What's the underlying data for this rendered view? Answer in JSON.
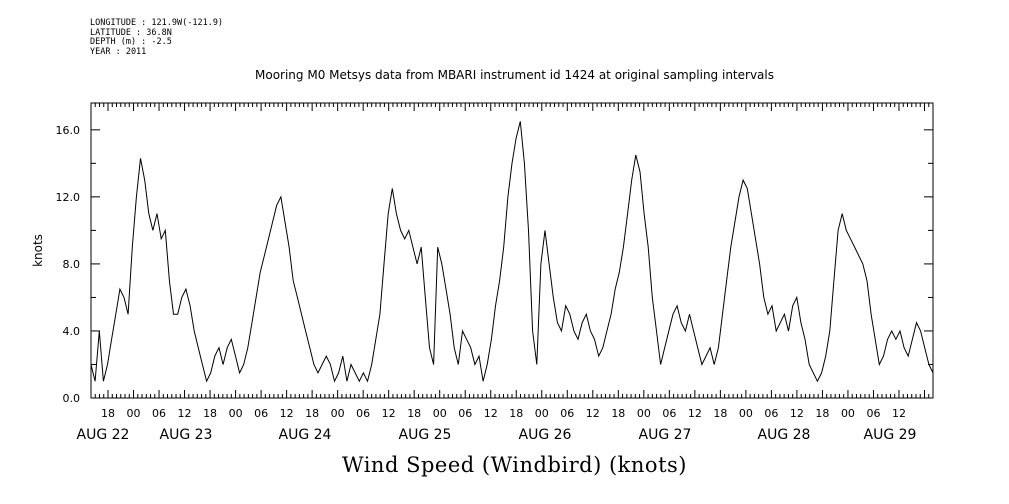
{
  "header": {
    "longitude": "LONGITUDE : 121.9W(-121.9)",
    "latitude": "LATITUDE : 36.8N",
    "depth": "DEPTH (m) : -2.5",
    "year": "YEAR : 2011"
  },
  "chart_data": {
    "type": "line",
    "title": "Mooring M0 Metsys data from MBARI instrument id 1424 at original sampling intervals",
    "xlabel": "Wind Speed (Windbird) (knots)",
    "ylabel": "knots",
    "ylim": [
      0,
      17.6
    ],
    "yticks": [
      0,
      4,
      8,
      12,
      16
    ],
    "ytick_labels": [
      "0.0",
      "4.0",
      "8.0",
      "12.0",
      "16.0"
    ],
    "xlim_hours": [
      "2011-08-21 14:00",
      "2011-08-29 20:00"
    ],
    "hour_tick_labels": [
      "18",
      "00",
      "06",
      "12",
      "18",
      "00",
      "06",
      "12",
      "18",
      "00",
      "06",
      "12",
      "18",
      "00",
      "06",
      "12",
      "18",
      "00",
      "06",
      "12",
      "18",
      "00",
      "06",
      "12",
      "18",
      "00",
      "06",
      "12",
      "18",
      "00",
      "06",
      "12"
    ],
    "date_labels": [
      "AUG 22",
      "AUG 23",
      "AUG 24",
      "AUG 25",
      "AUG 26",
      "AUG 27",
      "AUG 28",
      "AUG 29"
    ],
    "grid": false,
    "legend": "none",
    "line_color": "#000000",
    "series": [
      {
        "x_hours_since_2011-08-21T14:00": [
          0,
          1,
          2,
          3,
          4,
          5,
          6,
          7,
          8,
          9,
          10,
          11,
          12,
          13,
          14,
          15,
          16,
          17,
          18,
          19,
          20,
          21,
          22,
          23,
          24,
          25,
          26,
          27,
          28,
          29,
          30,
          31,
          32,
          33,
          34,
          35,
          36,
          37,
          38,
          39,
          40,
          41,
          42,
          43,
          44,
          45,
          46,
          47,
          48,
          49,
          50,
          51,
          52,
          53,
          54,
          55,
          56,
          57,
          58,
          59,
          60,
          61,
          62,
          63,
          64,
          65,
          66,
          67,
          68,
          69,
          70,
          71,
          72,
          73,
          74,
          75,
          76,
          77,
          78,
          79,
          80,
          81,
          82,
          83,
          84,
          85,
          86,
          87,
          88,
          89,
          90,
          91,
          92,
          93,
          94,
          95,
          96,
          97,
          98,
          99,
          100,
          101,
          102,
          103,
          104,
          105,
          106,
          107,
          108,
          109,
          110,
          111,
          112,
          113,
          114,
          115,
          116,
          117,
          118,
          119,
          120,
          121,
          122,
          123,
          124,
          125,
          126,
          127,
          128,
          129,
          130,
          131,
          132,
          133,
          134,
          135,
          136,
          137,
          138,
          139,
          140,
          141,
          142,
          143,
          144,
          145,
          146,
          147,
          148,
          149,
          150,
          151,
          152,
          153,
          154,
          155,
          156,
          157,
          158,
          159,
          160,
          161,
          162,
          163,
          164,
          165,
          166,
          167,
          168,
          169,
          170,
          171,
          172,
          173,
          174,
          175,
          176,
          177,
          178,
          179,
          180,
          181,
          182,
          183,
          184,
          185,
          186,
          187,
          188,
          189,
          190,
          191,
          192,
          193,
          194,
          195,
          196,
          197,
          198,
          199,
          200,
          201,
          202,
          203,
          204
        ],
        "values": [
          2.0,
          1.0,
          4.0,
          1.0,
          2.0,
          3.5,
          5.0,
          6.5,
          6.0,
          5.0,
          9.0,
          12.0,
          14.3,
          13.0,
          11.0,
          10.0,
          11.0,
          9.5,
          10.0,
          7.0,
          5.0,
          5.0,
          6.0,
          6.5,
          5.5,
          4.0,
          3.0,
          2.0,
          1.0,
          1.5,
          2.5,
          3.0,
          2.0,
          3.0,
          3.5,
          2.5,
          1.5,
          2.0,
          3.0,
          4.5,
          6.0,
          7.5,
          8.5,
          9.5,
          10.5,
          11.5,
          12.0,
          10.5,
          9.0,
          7.0,
          6.0,
          5.0,
          4.0,
          3.0,
          2.0,
          1.5,
          2.0,
          2.5,
          2.0,
          1.0,
          1.5,
          2.5,
          1.0,
          2.0,
          1.5,
          1.0,
          1.5,
          1.0,
          2.0,
          3.5,
          5.0,
          8.0,
          11.0,
          12.5,
          11.0,
          10.0,
          9.5,
          10.0,
          9.0,
          8.0,
          9.0,
          6.0,
          3.0,
          2.0,
          9.0,
          8.0,
          6.5,
          5.0,
          3.0,
          2.0,
          4.0,
          3.5,
          3.0,
          2.0,
          2.5,
          1.0,
          2.0,
          3.5,
          5.5,
          7.0,
          9.0,
          12.0,
          14.0,
          15.5,
          16.5,
          14.0,
          10.0,
          4.0,
          2.0,
          8.0,
          10.0,
          8.0,
          6.0,
          4.5,
          4.0,
          5.5,
          5.0,
          4.0,
          3.5,
          4.5,
          5.0,
          4.0,
          3.5,
          2.5,
          3.0,
          4.0,
          5.0,
          6.5,
          7.5,
          9.0,
          11.0,
          13.0,
          14.5,
          13.5,
          11.0,
          9.0,
          6.0,
          4.0,
          2.0,
          3.0,
          4.0,
          5.0,
          5.5,
          4.5,
          4.0,
          5.0,
          4.0,
          3.0,
          2.0,
          2.5,
          3.0,
          2.0,
          3.0,
          5.0,
          7.0,
          9.0,
          10.5,
          12.0,
          13.0,
          12.5,
          11.0,
          9.5,
          8.0,
          6.0,
          5.0,
          5.5,
          4.0,
          4.5,
          5.0,
          4.0,
          5.5,
          6.0,
          4.5,
          3.5,
          2.0,
          1.5,
          1.0,
          1.5,
          2.5,
          4.0,
          7.0,
          10.0,
          11.0,
          10.0,
          9.5,
          9.0,
          8.5,
          8.0,
          7.0,
          5.0,
          3.5,
          2.0,
          2.5,
          3.5,
          4.0,
          3.5,
          4.0,
          3.0,
          2.5,
          3.5,
          4.5,
          4.0,
          3.0,
          2.0,
          1.5
        ]
      }
    ]
  }
}
